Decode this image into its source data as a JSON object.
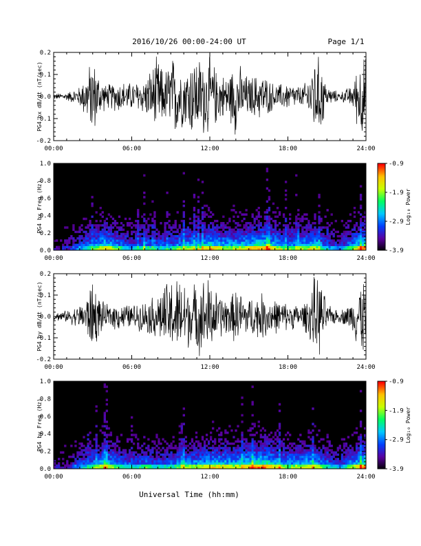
{
  "header": {
    "title": "2016/10/26  00:00-24:00 UT",
    "page": "Page 1/1"
  },
  "footer": {
    "xlabel": "Universal Time (hh:mm)"
  },
  "colors": {
    "trace": "#000000",
    "spectrogram_background": "#000000",
    "colorscale": [
      "#000000",
      "#5a00a0",
      "#0040ff",
      "#00c8ff",
      "#00ff60",
      "#c8ff00",
      "#ffc000",
      "#ff0000"
    ]
  },
  "chart_data": [
    {
      "type": "line",
      "ylabel": "PG4 bx dB/dt (nT/sec)",
      "xlim": [
        0,
        24
      ],
      "ylim": [
        -0.2,
        0.2
      ],
      "xticks": [
        "00:00",
        "06:00",
        "12:00",
        "18:00",
        "24:00"
      ],
      "yticks": [
        "-0.2",
        "-0.1",
        "0.0",
        "0.1",
        "0.2"
      ],
      "series": [
        {
          "x": [
            0,
            1,
            2,
            2.5,
            3,
            3.5,
            4,
            5,
            6,
            7,
            8,
            8.5,
            9,
            9.5,
            10,
            10.5,
            11,
            11.5,
            12,
            12.5,
            13,
            13.5,
            14,
            14.5,
            15,
            16,
            17,
            18,
            19,
            19.5,
            20,
            20.5,
            21,
            22,
            23,
            23.5,
            24
          ],
          "envelope": [
            0.015,
            0.02,
            0.05,
            0.12,
            0.2,
            0.11,
            0.06,
            0.08,
            0.07,
            0.09,
            0.2,
            0.12,
            0.2,
            0.2,
            0.14,
            0.2,
            0.2,
            0.2,
            0.2,
            0.14,
            0.11,
            0.12,
            0.2,
            0.13,
            0.1,
            0.12,
            0.06,
            0.07,
            0.05,
            0.08,
            0.2,
            0.2,
            0.05,
            0.02,
            0.06,
            0.2,
            0.2
          ]
        }
      ]
    },
    {
      "type": "heatmap",
      "ylabel": "PG4 bx Freq (Hz)",
      "xlim": [
        0,
        24
      ],
      "ylim": [
        0,
        1.0
      ],
      "xticks": [
        "00:00",
        "06:00",
        "12:00",
        "18:00",
        "24:00"
      ],
      "yticks": [
        "0.0",
        "0.2",
        "0.4",
        "0.6",
        "0.8",
        "1.0"
      ],
      "colorbar": {
        "label": "Log₁₀ Power",
        "range": [
          -3.9,
          -0.9
        ],
        "ticks": [
          "-0.9",
          "-1.9",
          "-2.9",
          "-3.9"
        ]
      },
      "activity": [
        0.1,
        0.15,
        0.3,
        0.45,
        0.65,
        0.45,
        0.3,
        0.45,
        0.35,
        0.4,
        0.55,
        0.5,
        0.65,
        0.55,
        0.55,
        0.6,
        0.7,
        0.6,
        0.45,
        0.5,
        0.6,
        0.35,
        0.25,
        0.5,
        0.75
      ]
    },
    {
      "type": "line",
      "ylabel": "PG4 by dB/dt (nT/sec)",
      "xlim": [
        0,
        24
      ],
      "ylim": [
        -0.2,
        0.2
      ],
      "xticks": [
        "00:00",
        "06:00",
        "12:00",
        "18:00",
        "24:00"
      ],
      "yticks": [
        "-0.2",
        "-0.1",
        "0.0",
        "0.1",
        "0.2"
      ],
      "series": [
        {
          "x": [
            0,
            1,
            2,
            2.5,
            3,
            3.5,
            4,
            5,
            6,
            7,
            8,
            8.5,
            9,
            9.5,
            10,
            10.5,
            11,
            11.5,
            12,
            12.5,
            13,
            13.5,
            14,
            14.5,
            15,
            16,
            17,
            18,
            19,
            19.5,
            20,
            20.5,
            21,
            22,
            23,
            23.5,
            24
          ],
          "envelope": [
            0.02,
            0.03,
            0.06,
            0.1,
            0.2,
            0.1,
            0.06,
            0.07,
            0.06,
            0.08,
            0.12,
            0.16,
            0.2,
            0.2,
            0.2,
            0.15,
            0.18,
            0.2,
            0.2,
            0.13,
            0.11,
            0.1,
            0.14,
            0.12,
            0.1,
            0.12,
            0.09,
            0.07,
            0.06,
            0.09,
            0.2,
            0.2,
            0.06,
            0.03,
            0.08,
            0.2,
            0.2
          ]
        }
      ]
    },
    {
      "type": "heatmap",
      "ylabel": "PG4 by Freq (Hz)",
      "xlim": [
        0,
        24
      ],
      "ylim": [
        0,
        1.0
      ],
      "xticks": [
        "00:00",
        "06:00",
        "12:00",
        "18:00",
        "24:00"
      ],
      "yticks": [
        "0.0",
        "0.2",
        "0.4",
        "0.6",
        "0.8",
        "1.0"
      ],
      "colorbar": {
        "label": "Log₁₀ Power",
        "range": [
          -3.9,
          -0.9
        ],
        "ticks": [
          "-0.9",
          "-1.9",
          "-2.9",
          "-3.9"
        ]
      },
      "activity": [
        0.12,
        0.15,
        0.3,
        0.45,
        0.6,
        0.45,
        0.35,
        0.45,
        0.35,
        0.4,
        0.5,
        0.5,
        0.6,
        0.6,
        0.55,
        0.65,
        0.7,
        0.6,
        0.5,
        0.55,
        0.6,
        0.35,
        0.3,
        0.5,
        0.75
      ]
    }
  ]
}
